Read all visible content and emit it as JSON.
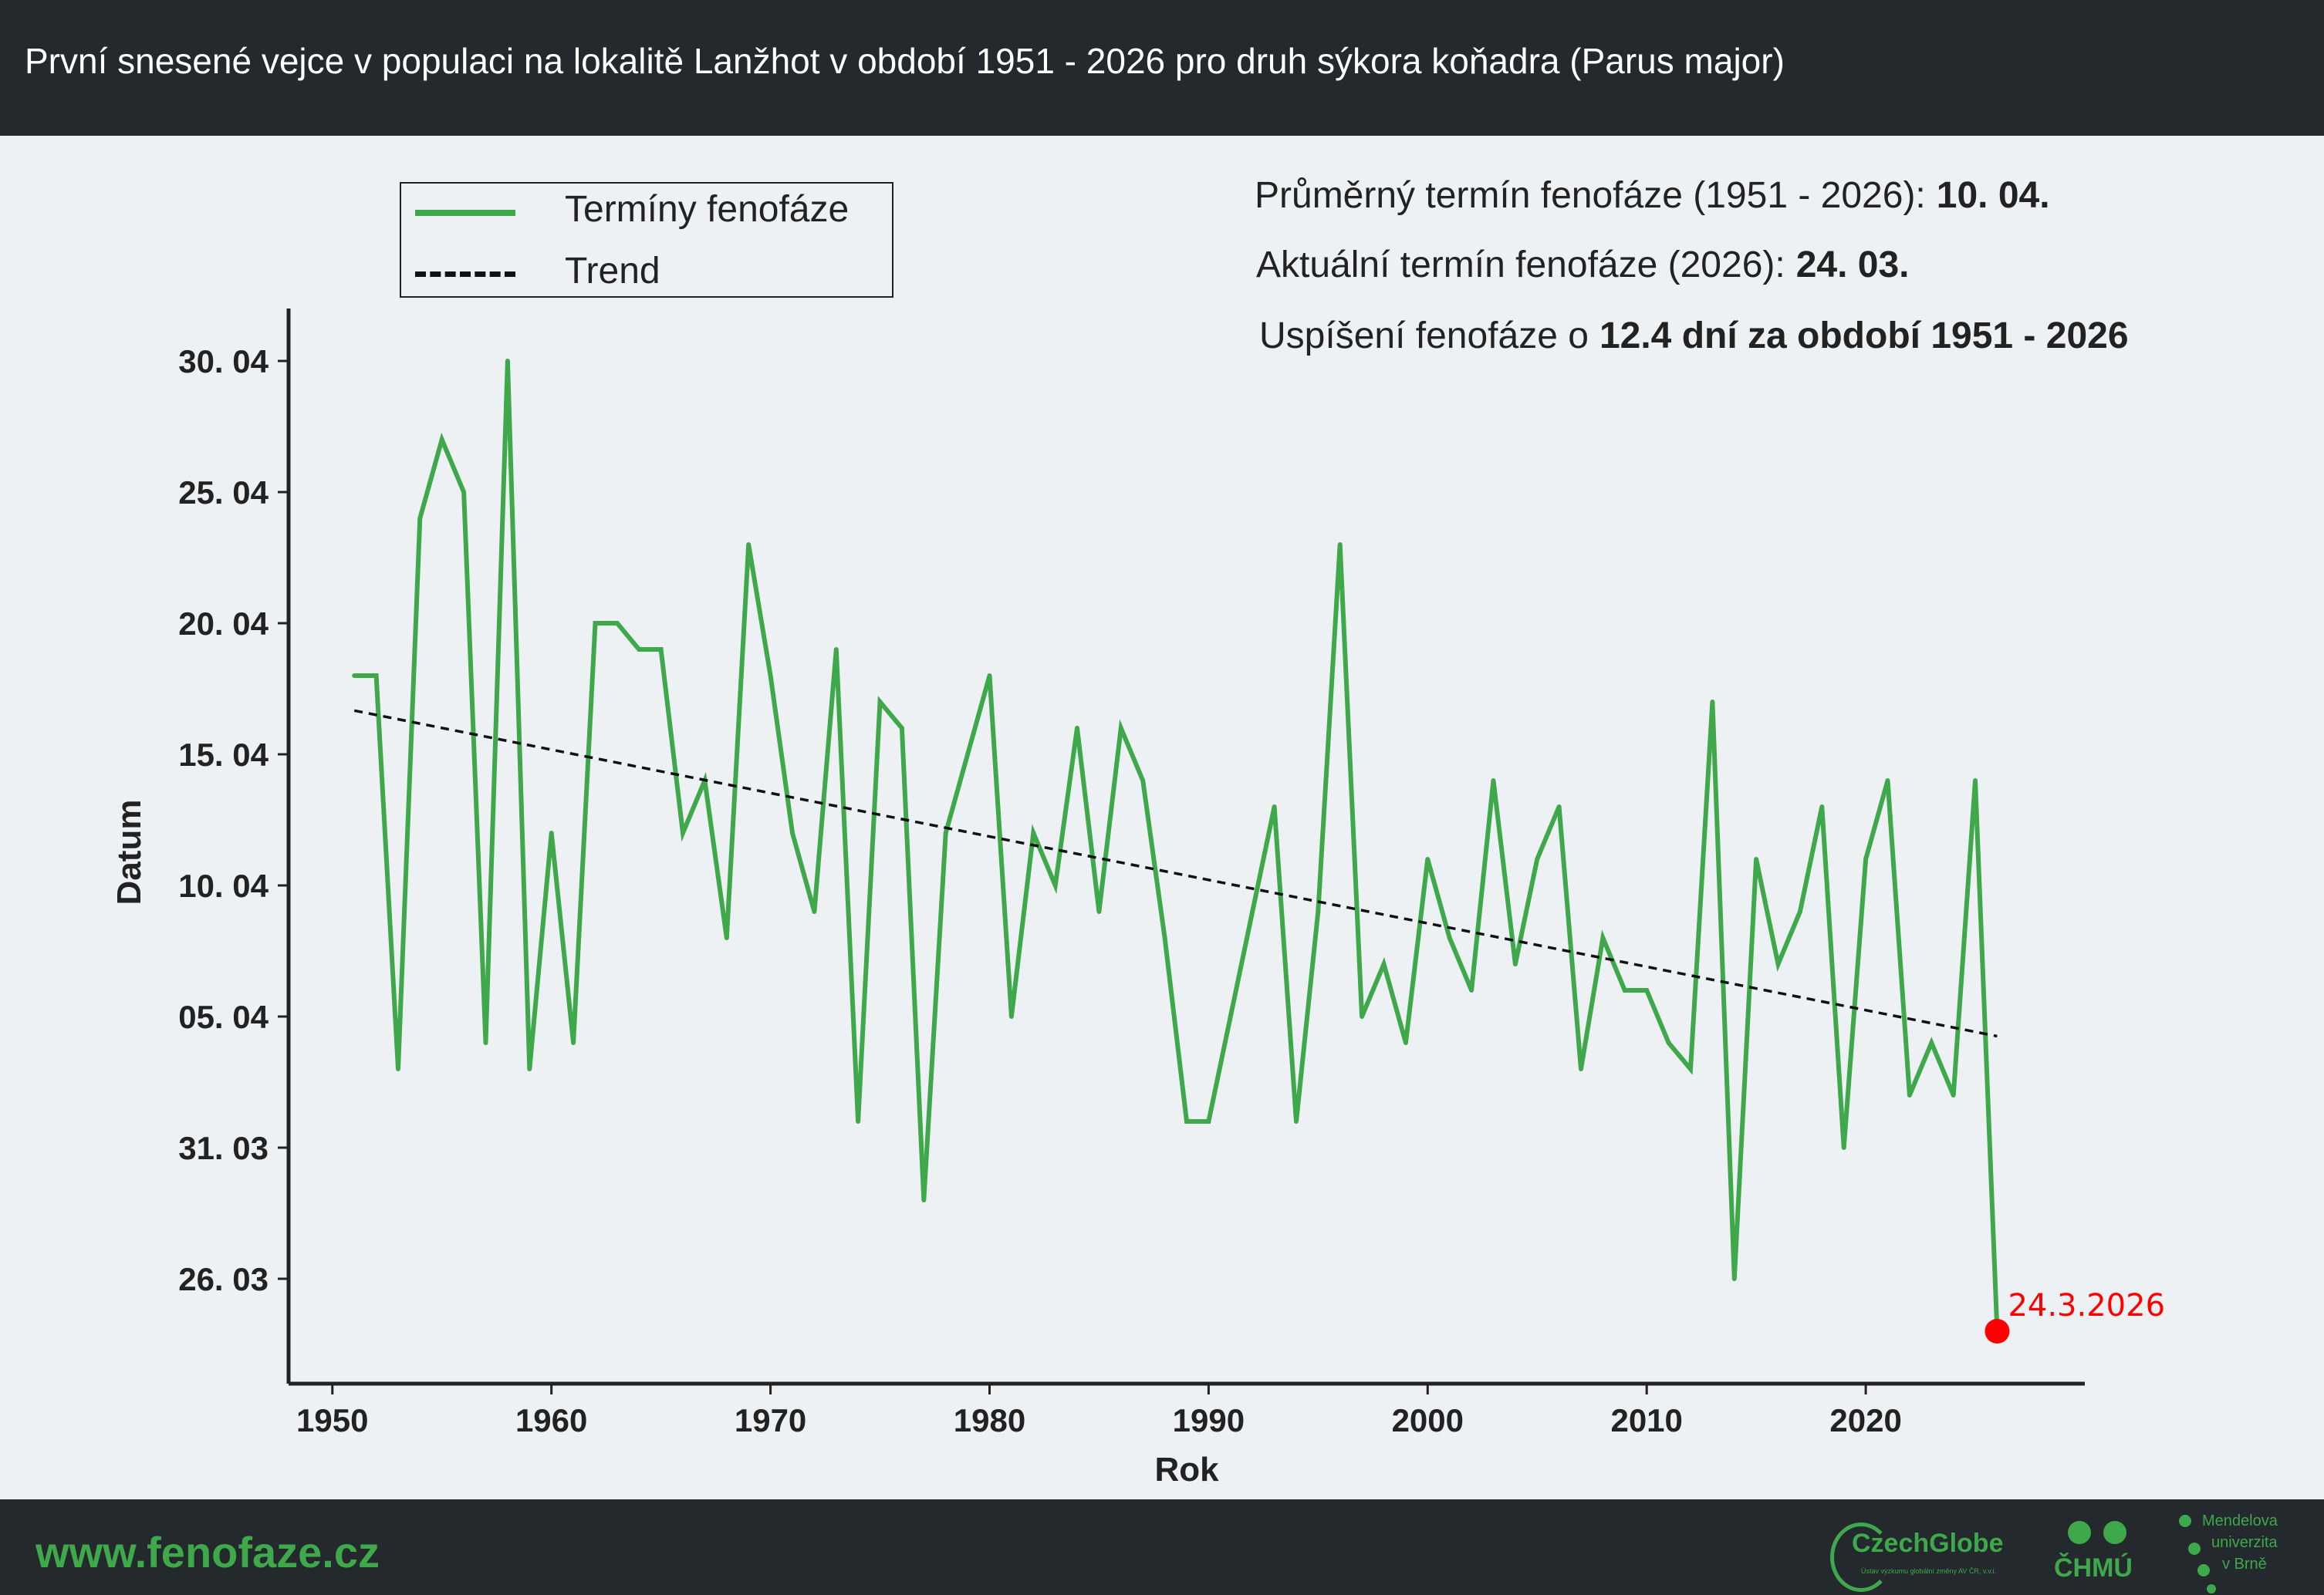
{
  "header": {
    "title": "První snesené vejce v populaci na lokalitě Lanžhot v období 1951 - 2026 pro druh sýkora koňadra (Parus major)"
  },
  "legend": {
    "items": [
      {
        "label": "Termíny fenofáze",
        "style": "solid",
        "color": "#3ea84a"
      },
      {
        "label": "Trend",
        "style": "dashed",
        "color": "#111111"
      }
    ]
  },
  "info": {
    "mean_label": "Průměrný termín fenofáze (1951 - 2026):",
    "mean_value": "10. 04.",
    "current_label": "Aktuální termín fenofáze (2026):",
    "current_value": "24. 03.",
    "shift_label": "Uspíšení fenofáze o",
    "shift_value": "12.4 dní za období 1951 - 2026"
  },
  "footer": {
    "url": "www.fenofaze.cz",
    "logo_czechglobe": "CzechGlobe",
    "logo_czechglobe_sub": "Ústav výzkumu globální změny AV ČR, v.v.i.",
    "logo_chmu": "ČHMÚ",
    "logo_mendel": [
      "Mendelova",
      "univerzita",
      "v Brně"
    ]
  },
  "colors": {
    "series": "#3ea84a",
    "trend": "#111111",
    "highlight": "#ff0000",
    "header_bg": "#23292d",
    "plot_bg": "#edf1f4"
  },
  "chart_data": {
    "type": "line",
    "xlabel": "Rok",
    "ylabel": "Datum",
    "xlim": [
      1948,
      2030
    ],
    "xticks": [
      1950,
      1960,
      1970,
      1980,
      1990,
      2000,
      2010,
      2020
    ],
    "ylim": [
      "2026-03-22",
      "2026-05-02"
    ],
    "yticks": [
      {
        "date": "2026-03-26",
        "label": "26. 03"
      },
      {
        "date": "2026-03-31",
        "label": "31. 03"
      },
      {
        "date": "2026-04-05",
        "label": "05. 04"
      },
      {
        "date": "2026-04-10",
        "label": "10. 04"
      },
      {
        "date": "2026-04-15",
        "label": "15. 04"
      },
      {
        "date": "2026-04-20",
        "label": "20. 04"
      },
      {
        "date": "2026-04-25",
        "label": "25. 04"
      },
      {
        "date": "2026-04-30",
        "label": "30. 04"
      }
    ],
    "grid": false,
    "legend_position": "top-left",
    "series": [
      {
        "name": "Termíny fenofáze",
        "style": "solid",
        "x": [
          1951,
          1952,
          1953,
          1954,
          1955,
          1956,
          1957,
          1958,
          1959,
          1960,
          1961,
          1962,
          1963,
          1964,
          1965,
          1966,
          1967,
          1968,
          1969,
          1970,
          1971,
          1972,
          1973,
          1974,
          1975,
          1976,
          1977,
          1978,
          1979,
          1980,
          1981,
          1982,
          1983,
          1984,
          1985,
          1986,
          1987,
          1988,
          1989,
          1990,
          1991,
          1992,
          1993,
          1994,
          1995,
          1996,
          1997,
          1998,
          1999,
          2000,
          2001,
          2002,
          2003,
          2004,
          2005,
          2006,
          2007,
          2008,
          2009,
          2010,
          2011,
          2012,
          2013,
          2014,
          2015,
          2016,
          2017,
          2018,
          2019,
          2020,
          2021,
          2022,
          2023,
          2024,
          2025,
          2026
        ],
        "y": [
          "2026-04-18",
          "2026-04-18",
          "2026-04-03",
          "2026-04-24",
          "2026-04-27",
          "2026-04-25",
          "2026-04-04",
          "2026-04-30",
          "2026-04-03",
          "2026-04-12",
          "2026-04-04",
          "2026-04-20",
          "2026-04-20",
          "2026-04-19",
          "2026-04-19",
          "2026-04-12",
          "2026-04-14",
          "2026-04-08",
          "2026-04-23",
          "2026-04-18",
          "2026-04-12",
          "2026-04-09",
          "2026-04-19",
          "2026-04-01",
          "2026-04-17",
          "2026-04-16",
          "2026-03-29",
          "2026-04-12",
          "2026-04-15",
          "2026-04-18",
          "2026-04-05",
          "2026-04-12",
          "2026-04-10",
          "2026-04-16",
          "2026-04-09",
          "2026-04-16",
          "2026-04-14",
          "2026-04-08",
          "2026-04-01",
          "2026-04-01",
          "2026-04-05",
          "2026-04-09",
          "2026-04-13",
          "2026-04-01",
          "2026-04-09",
          "2026-04-23",
          "2026-04-05",
          "2026-04-07",
          "2026-04-04",
          "2026-04-11",
          "2026-04-08",
          "2026-04-06",
          "2026-04-14",
          "2026-04-07",
          "2026-04-11",
          "2026-04-13",
          "2026-04-03",
          "2026-04-08",
          "2026-04-06",
          "2026-04-06",
          "2026-04-04",
          "2026-04-03",
          "2026-04-17",
          "2026-03-26",
          "2026-04-11",
          "2026-04-07",
          "2026-04-09",
          "2026-04-13",
          "2026-03-31",
          "2026-04-11",
          "2026-04-14",
          "2026-04-02",
          "2026-04-04",
          "2026-04-02",
          "2026-04-14",
          "2026-03-24"
        ]
      },
      {
        "name": "Trend",
        "style": "dashed",
        "x": [
          1951,
          2026
        ],
        "y": [
          "2026-04-16T16:00",
          "2026-04-04T06:00"
        ]
      }
    ],
    "highlight_point": {
      "x": 2026,
      "y": "2026-03-24",
      "label": "24.3.2026"
    }
  }
}
